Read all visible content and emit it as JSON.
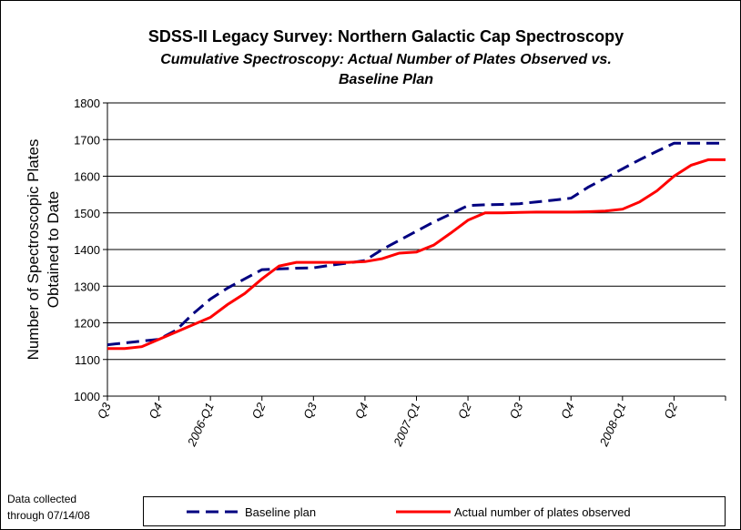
{
  "chart_data": {
    "type": "line",
    "title": "SDSS-II Legacy Survey: Northern Galactic Cap Spectroscopy",
    "subtitle": [
      "Cumulative Spectroscopy: Actual Number of Plates Observed vs.",
      "Baseline Plan"
    ],
    "ylabel": [
      "Number of Spectroscopic Plates",
      "Obtained to Date"
    ],
    "note": [
      "Data collected",
      "through 07/14/08"
    ],
    "categories": [
      "Q3",
      null,
      null,
      "Q4",
      null,
      null,
      "2006-Q1",
      null,
      null,
      "Q2",
      null,
      null,
      "Q3",
      null,
      null,
      "Q4",
      null,
      null,
      "2007-Q1",
      null,
      null,
      "Q2",
      null,
      null,
      "Q3",
      null,
      null,
      "Q4",
      null,
      null,
      "2008-Q1",
      null,
      null,
      "Q2",
      null,
      null,
      null
    ],
    "series": [
      {
        "name": "Baseline plan",
        "color": "#000080",
        "dashed": true,
        "values": [
          1140,
          1145,
          1150,
          1155,
          1180,
          1225,
          1265,
          1295,
          1320,
          1345,
          1347,
          1349,
          1350,
          1357,
          1363,
          1370,
          1400,
          1425,
          1450,
          1475,
          1497,
          1520,
          1522,
          1523,
          1525,
          1530,
          1535,
          1540,
          1570,
          1595,
          1620,
          1645,
          1668,
          1690,
          1690,
          1690,
          1690
        ]
      },
      {
        "name": "Actual number of plates observed",
        "color": "#ff0000",
        "dashed": false,
        "values": [
          1130,
          1130,
          1135,
          1155,
          1175,
          1195,
          1215,
          1250,
          1280,
          1320,
          1355,
          1365,
          1365,
          1365,
          1365,
          1367,
          1375,
          1390,
          1393,
          1412,
          1445,
          1480,
          1500,
          1500,
          1501,
          1502,
          1502,
          1502,
          1503,
          1505,
          1510,
          1530,
          1560,
          1600,
          1630,
          1645,
          1645
        ]
      }
    ],
    "ylim": [
      1000,
      1800
    ],
    "yticks": [
      1000,
      1100,
      1200,
      1300,
      1400,
      1500,
      1600,
      1700,
      1800
    ],
    "grid": true,
    "legend": "bottom"
  }
}
